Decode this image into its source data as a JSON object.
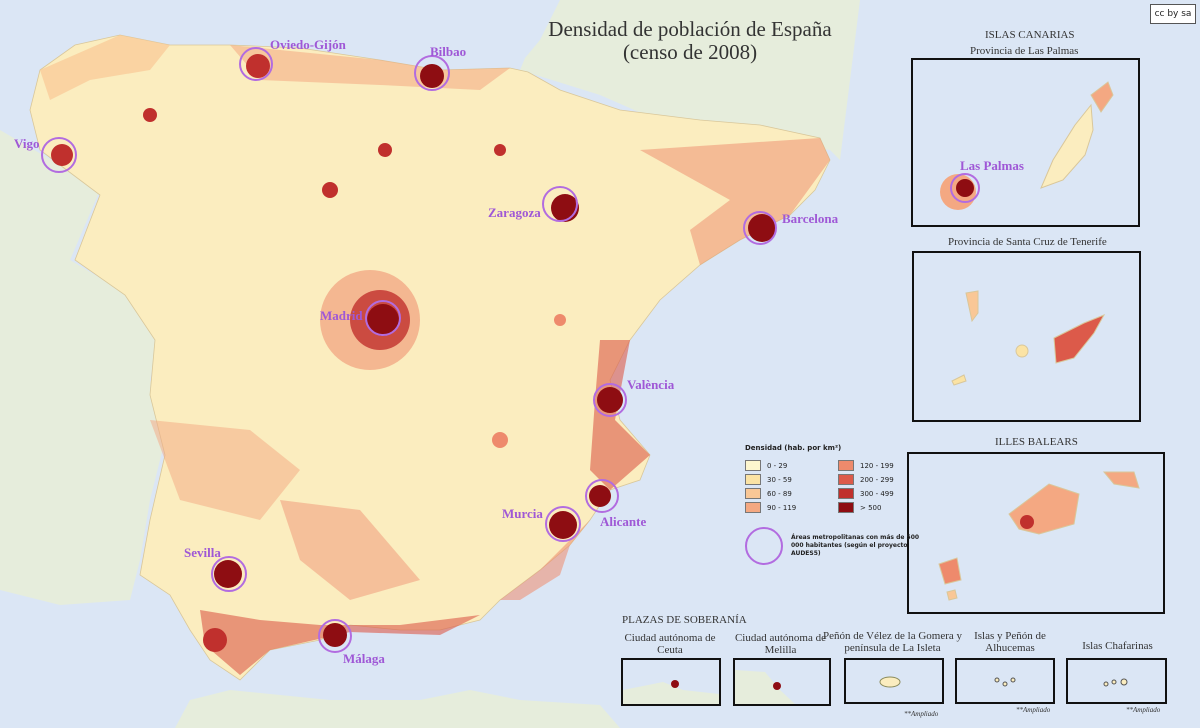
{
  "title_line1": "Densidad de población de España",
  "title_line2": "(censo de 2008)",
  "license_badge": "cc by sa",
  "colors": {
    "sea": "#dbe6f5",
    "foreign_land": "#e6eddc",
    "land_base": "#fbedbf",
    "metro_circle": "#b26ce0",
    "label": "#9f58d6"
  },
  "cities": {
    "vigo": "Vigo",
    "oviedo": "Oviedo-Gijón",
    "bilbao": "Bilbao",
    "zaragoza": "Zaragoza",
    "barcelona": "Barcelona",
    "madrid": "Madrid",
    "valencia": "València",
    "alicante": "Alicante",
    "murcia": "Murcia",
    "sevilla": "Sevilla",
    "malaga": "Málaga",
    "las_palmas": "Las Palmas"
  },
  "insets": {
    "canarias_title": "ISLAS CANARIAS",
    "las_palmas_prov": "Provincia de Las Palmas",
    "tenerife_prov": "Provincia de Santa Cruz de Tenerife",
    "baleares_title": "ILLES BALEARS",
    "plazas_title": "PLAZAS DE SOBERANÍA",
    "ceuta": "Ciudad autónoma de Ceuta",
    "melilla": "Ciudad autónoma de Melilla",
    "velez": "Peñón de Vélez de la Gomera y península de La Isleta",
    "alhucemas": "Islas y Peñón de Alhucemas",
    "chafarinas": "Islas Chafarinas",
    "ampliado": "**Ampliado"
  },
  "legend": {
    "title": "Densidad (hab. por km²)",
    "classes": [
      {
        "label": "0 - 29",
        "color": "#fdf6cf"
      },
      {
        "label": "120 - 199",
        "color": "#ee8a6c"
      },
      {
        "label": "30 - 59",
        "color": "#fbe3a4"
      },
      {
        "label": "200 - 299",
        "color": "#dc5a4a"
      },
      {
        "label": "60 - 89",
        "color": "#f9c796"
      },
      {
        "label": "300 - 499",
        "color": "#c0302d"
      },
      {
        "label": "90 - 119",
        "color": "#f4a882"
      },
      {
        "label": "> 500",
        "color": "#8e0d12"
      }
    ],
    "metro_text": "Áreas metropolitanas con más de 500 000 habitantes (según el proyecto AUDES5)"
  }
}
